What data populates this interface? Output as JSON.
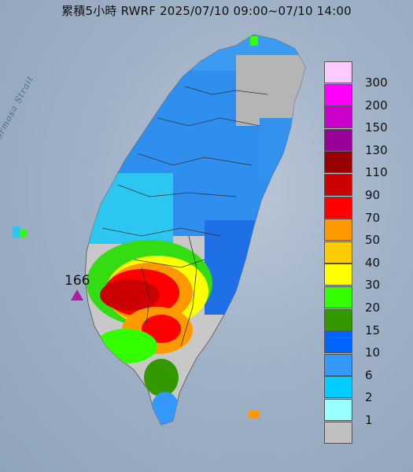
{
  "title": "累積5小時 RWRF 2025/07/10 09:00~07/10 14:00",
  "sea_label": "Formosa Strait",
  "max_marker": {
    "value_label": "166"
  },
  "legend": {
    "labels": [
      "300",
      "200",
      "150",
      "130",
      "110",
      "90",
      "70",
      "50",
      "40",
      "30",
      "20",
      "15",
      "10",
      "6",
      "2",
      "1"
    ],
    "colors": [
      "#ffc8ff",
      "#ff00ff",
      "#cc00cc",
      "#990099",
      "#990000",
      "#cc0000",
      "#ff0000",
      "#ff9900",
      "#ffcc00",
      "#ffff00",
      "#33ff00",
      "#339900",
      "#0066ff",
      "#3399ff",
      "#00ccff",
      "#99ffff",
      "#c0c0c0"
    ]
  }
}
